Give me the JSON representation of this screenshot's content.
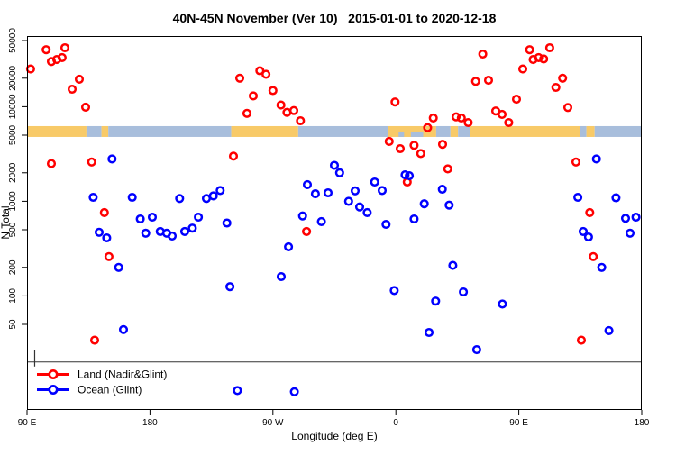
{
  "title": "40N-45N November (Ver 10)   2015-01-01 to 2020-12-18",
  "colors": {
    "land_series": "#FF0000",
    "ocean_series": "#0000FF",
    "map_land": "#F8CA68",
    "map_ocean": "#A8BEDC",
    "frame": "#000000",
    "threshold_line": "#333333"
  },
  "legend": {
    "items": [
      {
        "label": "Land (Nadir&Glint)",
        "color": "#FF0000"
      },
      {
        "label": "Ocean (Glint)",
        "color": "#0000FF"
      }
    ]
  },
  "chart_data": {
    "type": "scatter",
    "title": "40N-45N November (Ver 10)   2015-01-01 to 2020-12-18",
    "xlabel": "Longitude (deg E)",
    "ylabel": "N Total",
    "y_scale": "log10",
    "ylim": [
      6.2,
      55800
    ],
    "x_axis_note": "axis wraps eastward from 90E; axis coordinate runs 90..540 deg",
    "x_ticks": [
      {
        "deg": 90,
        "label": "90 E"
      },
      {
        "deg": 180,
        "label": "180"
      },
      {
        "deg": 270,
        "label": "90 W"
      },
      {
        "deg": 360,
        "label": "0"
      },
      {
        "deg": 450,
        "label": "90 E"
      },
      {
        "deg": 540,
        "label": "180"
      }
    ],
    "y_ticks": [
      {
        "value": 50,
        "label": "50"
      },
      {
        "value": 100,
        "label": "100"
      },
      {
        "value": 200,
        "label": "200"
      },
      {
        "value": 500,
        "label": "500"
      },
      {
        "value": 1000,
        "label": "1000"
      },
      {
        "value": 2000,
        "label": "2000"
      },
      {
        "value": 5000,
        "label": "5000"
      },
      {
        "value": 10000,
        "label": "10000"
      },
      {
        "value": 20000,
        "label": "20000"
      },
      {
        "value": 50000,
        "label": "50000"
      }
    ],
    "threshold_line_value": 20,
    "threshold_marker_deg": 95.6,
    "map_strip": {
      "value_top": 6230,
      "value_bottom": 4790,
      "segments": [
        {
          "from": 90,
          "to": 133.5,
          "surface": "land"
        },
        {
          "from": 133.5,
          "to": 144.5,
          "surface": "ocean"
        },
        {
          "from": 144.5,
          "to": 149.5,
          "surface": "land"
        },
        {
          "from": 149.5,
          "to": 239.5,
          "surface": "ocean"
        },
        {
          "from": 239.5,
          "to": 288.5,
          "surface": "land"
        },
        {
          "from": 288.5,
          "to": 354.5,
          "surface": "ocean"
        },
        {
          "from": 354.5,
          "to": 389.5,
          "surface": "land"
        },
        {
          "from": 362,
          "to": 366,
          "surface": "ocean",
          "half": true
        },
        {
          "from": 371,
          "to": 380,
          "surface": "ocean",
          "half": true
        },
        {
          "from": 389.5,
          "to": 400,
          "surface": "ocean"
        },
        {
          "from": 400,
          "to": 405.5,
          "surface": "land"
        },
        {
          "from": 405.5,
          "to": 414.5,
          "surface": "ocean"
        },
        {
          "from": 414.5,
          "to": 495,
          "surface": "land"
        },
        {
          "from": 495,
          "to": 499.5,
          "surface": "ocean"
        },
        {
          "from": 499.5,
          "to": 505.5,
          "surface": "land"
        },
        {
          "from": 505.5,
          "to": 540,
          "surface": "ocean"
        }
      ]
    },
    "series": [
      {
        "name": "Land (Nadir&Glint)",
        "color": "#FF0000",
        "points": [
          [
            104,
            40000
          ],
          [
            117.7,
            42000
          ],
          [
            107.8,
            30000
          ],
          [
            111.8,
            31500
          ],
          [
            115.7,
            33000
          ],
          [
            92.6,
            25000
          ],
          [
            128.3,
            19500
          ],
          [
            123,
            15300
          ],
          [
            132.9,
            9900
          ],
          [
            137.3,
            2600
          ],
          [
            146.6,
            760
          ],
          [
            150,
            260
          ],
          [
            139.5,
            34
          ],
          [
            107.8,
            2500
          ],
          [
            241.1,
            3000
          ],
          [
            245.7,
            20000
          ],
          [
            260.4,
            24000
          ],
          [
            264.9,
            22000
          ],
          [
            255.6,
            13000
          ],
          [
            270,
            14800
          ],
          [
            251,
            8500
          ],
          [
            275.9,
            10400
          ],
          [
            280.3,
            8700
          ],
          [
            285.3,
            9100
          ],
          [
            290.1,
            7100
          ],
          [
            294.6,
            480
          ],
          [
            355.1,
            4300
          ],
          [
            363.2,
            3600
          ],
          [
            373.3,
            3900
          ],
          [
            368.3,
            1600
          ],
          [
            359.4,
            11200
          ],
          [
            378.2,
            3200
          ],
          [
            383.2,
            6000
          ],
          [
            387.4,
            7600
          ],
          [
            394.2,
            4000
          ],
          [
            398,
            2200
          ],
          [
            404.1,
            7800
          ],
          [
            407.9,
            7600
          ],
          [
            412.9,
            6800
          ],
          [
            418.4,
            18500
          ],
          [
            427.8,
            19000
          ],
          [
            423.6,
            36000
          ],
          [
            457.9,
            40000
          ],
          [
            472.6,
            42000
          ],
          [
            460.5,
            31500
          ],
          [
            464.5,
            33000
          ],
          [
            468.2,
            32000
          ],
          [
            452.9,
            25000
          ],
          [
            482.1,
            20000
          ],
          [
            477.1,
            16000
          ],
          [
            485.9,
            9800
          ],
          [
            433.1,
            9000
          ],
          [
            437.7,
            8300
          ],
          [
            442.6,
            6800
          ],
          [
            448.3,
            12000
          ],
          [
            491.8,
            2600
          ],
          [
            501.9,
            760
          ],
          [
            504.5,
            260
          ],
          [
            495.8,
            34
          ]
        ]
      },
      {
        "name": "Ocean (Glint)",
        "color": "#0000FF",
        "points": [
          [
            152.2,
            2800
          ],
          [
            138.4,
            1100
          ],
          [
            167,
            1100
          ],
          [
            201.7,
            1070
          ],
          [
            221.3,
            1070
          ],
          [
            226.4,
            1140
          ],
          [
            231.4,
            1300
          ],
          [
            172.9,
            650
          ],
          [
            181.7,
            680
          ],
          [
            215.4,
            680
          ],
          [
            236.3,
            590
          ],
          [
            142.8,
            470
          ],
          [
            148.3,
            410
          ],
          [
            176.9,
            460
          ],
          [
            187.5,
            480
          ],
          [
            192.3,
            460
          ],
          [
            196.2,
            430
          ],
          [
            205.5,
            480
          ],
          [
            211,
            520
          ],
          [
            157.1,
            200
          ],
          [
            160.6,
            44
          ],
          [
            238.5,
            125
          ],
          [
            244,
            10
          ],
          [
            285.7,
            9.7
          ],
          [
            276.1,
            160
          ],
          [
            281.4,
            330
          ],
          [
            291.7,
            700
          ],
          [
            305.5,
            610
          ],
          [
            295.2,
            1500
          ],
          [
            301.1,
            1200
          ],
          [
            310.4,
            1230
          ],
          [
            315,
            2400
          ],
          [
            318.8,
            2000
          ],
          [
            330.2,
            1290
          ],
          [
            325.4,
            1000
          ],
          [
            333.5,
            870
          ],
          [
            339,
            760
          ],
          [
            344.5,
            1600
          ],
          [
            350,
            1300
          ],
          [
            366.7,
            1900
          ],
          [
            369.8,
            1860
          ],
          [
            352.8,
            570
          ],
          [
            373.3,
            650
          ],
          [
            380.8,
            940
          ],
          [
            399,
            910
          ],
          [
            394,
            1340
          ],
          [
            358.8,
            114
          ],
          [
            389.1,
            88
          ],
          [
            401.7,
            210
          ],
          [
            409.4,
            110
          ],
          [
            438,
            82
          ],
          [
            384.3,
            41
          ],
          [
            419.2,
            27
          ],
          [
            506.8,
            2800
          ],
          [
            493.2,
            1100
          ],
          [
            521.1,
            1090
          ],
          [
            528.1,
            660
          ],
          [
            535.8,
            680
          ],
          [
            531.4,
            460
          ],
          [
            497.1,
            480
          ],
          [
            501,
            420
          ],
          [
            510.7,
            200
          ],
          [
            516,
            43
          ]
        ]
      }
    ]
  }
}
